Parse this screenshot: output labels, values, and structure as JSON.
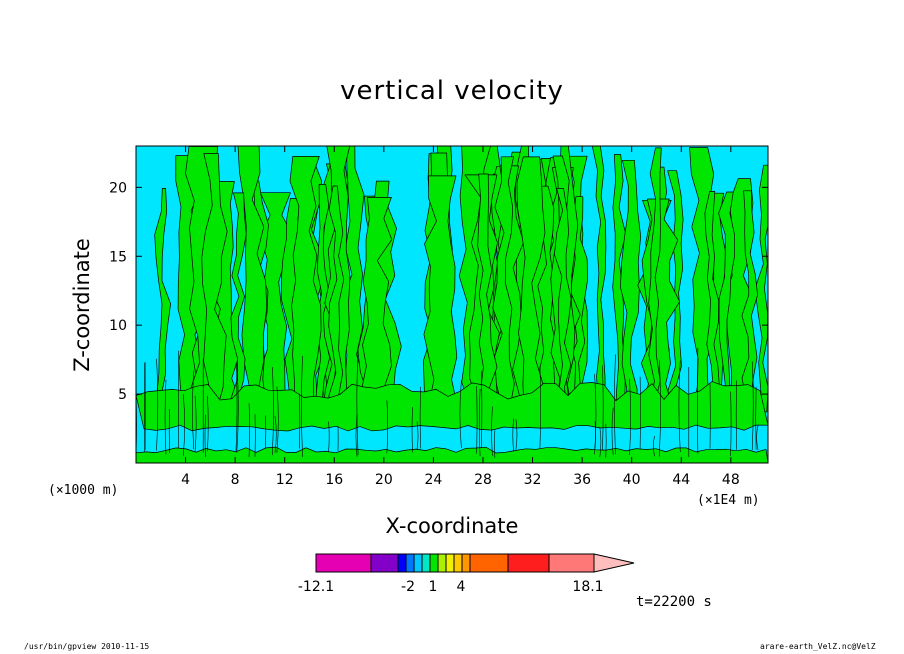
{
  "chart_data": {
    "type": "heatmap",
    "title": "vertical velocity",
    "xlabel": "X-coordinate",
    "ylabel": "Z-coordinate",
    "x_unit_label": "(×1000 m)",
    "x_scale_label": "(×1E4 m)",
    "xlim": [
      0,
      51
    ],
    "ylim": [
      0,
      23
    ],
    "x_ticks": [
      4,
      8,
      12,
      16,
      20,
      24,
      28,
      32,
      36,
      40,
      44,
      48
    ],
    "y_ticks": [
      5,
      10,
      15,
      20
    ],
    "fill_colors": {
      "positive": "#00e600",
      "negative": "#00e6ff"
    },
    "colorbar": {
      "segments": [
        {
          "color": "#e600b4"
        },
        {
          "color": "#8200c8"
        },
        {
          "color": "#0000ff"
        },
        {
          "color": "#0078ff"
        },
        {
          "color": "#00c8ff"
        },
        {
          "color": "#00e6c8"
        },
        {
          "color": "#00e600"
        },
        {
          "color": "#aaf000"
        },
        {
          "color": "#f0f000"
        },
        {
          "color": "#ffc800"
        },
        {
          "color": "#ff9600"
        },
        {
          "color": "#ff6400"
        },
        {
          "color": "#ff1e1e"
        },
        {
          "color": "#ff7878"
        },
        {
          "color": "#ffbebe"
        }
      ],
      "labels": [
        "-12.1",
        "-2",
        "1",
        "4",
        "18.1"
      ]
    },
    "time_label": "t=22200 s",
    "grid": false,
    "legend": "bottom-colorbar"
  },
  "footer": {
    "left": "/usr/bin/gpview  2010-11-15",
    "right": "arare-earth_VelZ.nc@VelZ"
  }
}
